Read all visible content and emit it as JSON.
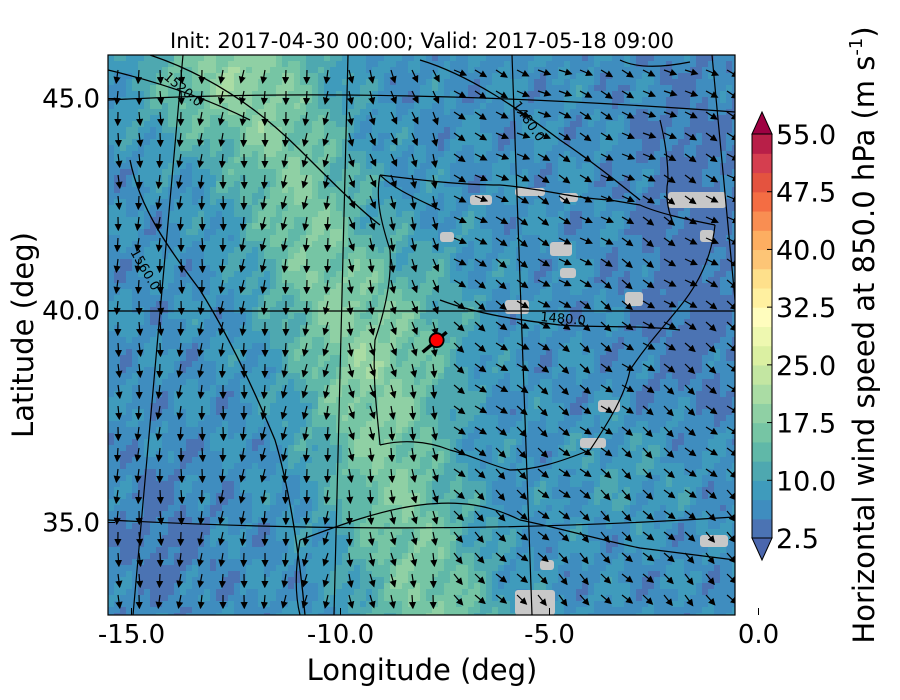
{
  "chart_data": {
    "type": "heatmap",
    "title": "Init: 2017-04-30 00:00; Valid: 2017-05-18 09:00",
    "xlabel": "Longitude (deg)",
    "ylabel": "Latitude (deg)",
    "xlim": [
      -16,
      0.3
    ],
    "ylim": [
      32.7,
      46.2
    ],
    "x_ticks": [
      "-15.0",
      "-10.0",
      "-5.0",
      "0.0"
    ],
    "y_ticks": [
      "35.0",
      "40.0",
      "45.0"
    ],
    "colorbar": {
      "label": "Horizontal wind speed at 850.0 hPa (m s",
      "label_superscript": "-1",
      "label_close": ")",
      "tick_labels": [
        "2.5",
        "10.0",
        "17.5",
        "25.0",
        "32.5",
        "40.0",
        "47.5",
        "55.0"
      ],
      "range": [
        2.5,
        55.0
      ],
      "step": 2.5,
      "extend": "both",
      "colors": [
        "#4a66ad",
        "#4b73b3",
        "#3f8dbf",
        "#3f9bbc",
        "#4ea8b0",
        "#60b8a8",
        "#76c5a4",
        "#8fd0a4",
        "#aadca4",
        "#c3e6a2",
        "#dbf0a2",
        "#eef8b0",
        "#fffdbe",
        "#fff0a0",
        "#fee08b",
        "#fdc576",
        "#fdae61",
        "#f98e52",
        "#f46d43",
        "#e4533f",
        "#d53e4f",
        "#b81f48",
        "#9e0142"
      ]
    },
    "contour_labels": [
      "1520.0",
      "1480.0",
      "1560.0",
      "1480.0"
    ],
    "marker": {
      "lon": -7.7,
      "lat": 39.3,
      "color": "#ff0000"
    },
    "grid": true
  }
}
